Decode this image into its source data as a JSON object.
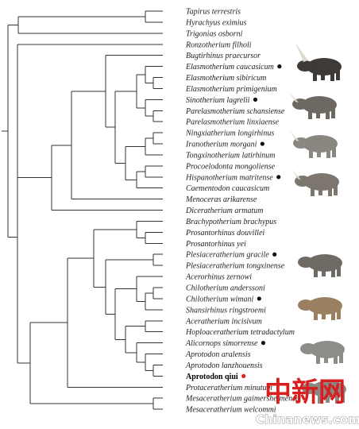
{
  "taxa": [
    {
      "name": "Tapirus terrestris",
      "mark": "none"
    },
    {
      "name": "Hyrachyus eximius",
      "mark": "none"
    },
    {
      "name": "Trigonias osborni",
      "mark": "none"
    },
    {
      "name": "Ronzotherium filholi",
      "mark": "none"
    },
    {
      "name": "Bugtirhinus praecursor",
      "mark": "none"
    },
    {
      "name": "Elasmotherium caucasicum",
      "mark": "dot"
    },
    {
      "name": "Elasmotherium sibiricum",
      "mark": "none"
    },
    {
      "name": "Elasmotherium primigenium",
      "mark": "none"
    },
    {
      "name": "Sinotherium lagrelii",
      "mark": "dot"
    },
    {
      "name": "Parelasmotherium schansiense",
      "mark": "none"
    },
    {
      "name": "Parelasmotherium linxiaense",
      "mark": "none"
    },
    {
      "name": "Ningxiatherium longirhinus",
      "mark": "none"
    },
    {
      "name": "Iranotherium morgani",
      "mark": "dot"
    },
    {
      "name": "Tongxinotherium latirhinum",
      "mark": "none"
    },
    {
      "name": "Procoelodonta mongoliense",
      "mark": "none"
    },
    {
      "name": "Hispanotherium matritense",
      "mark": "dot"
    },
    {
      "name": "Caementodon caucasicum",
      "mark": "none"
    },
    {
      "name": "Menoceras arikarense",
      "mark": "none"
    },
    {
      "name": "Diceratherium armatum",
      "mark": "none"
    },
    {
      "name": "Brachypotherium brachypus",
      "mark": "none"
    },
    {
      "name": "Prosantorhinus douvillei",
      "mark": "none"
    },
    {
      "name": "Prosantorhinus yei",
      "mark": "none"
    },
    {
      "name": "Plesiaceratherium gracile",
      "mark": "dot"
    },
    {
      "name": "Plesiaceratherium tongxinense",
      "mark": "none"
    },
    {
      "name": "Acerorhinus zernowi",
      "mark": "none"
    },
    {
      "name": "Chilotherium anderssoni",
      "mark": "none"
    },
    {
      "name": "Chilotherium wimani",
      "mark": "dot"
    },
    {
      "name": "Shansirhinus ringstroemi",
      "mark": "none"
    },
    {
      "name": "Aceratherium incisivum",
      "mark": "none"
    },
    {
      "name": "Hoploaceratherium tetradactylum",
      "mark": "none"
    },
    {
      "name": "Alicornops simorrense",
      "mark": "dot"
    },
    {
      "name": "Aprotodon aralensis",
      "mark": "none"
    },
    {
      "name": "Aprotodon lanzhouensis",
      "mark": "none"
    },
    {
      "name": "Aprotodon qiui",
      "mark": "reddot",
      "bold": true
    },
    {
      "name": "Protaceratherium minutum",
      "mark": "none"
    },
    {
      "name": "Mesaceratherium gaimersheimense",
      "mark": "none"
    },
    {
      "name": "Mesaceratherium welcommi",
      "mark": "none"
    }
  ],
  "illustrations": [
    {
      "icon": "woolly-elasmotherium-icon",
      "color": "#3d3a37"
    },
    {
      "icon": "sinotherium-icon",
      "color": "#6d6862"
    },
    {
      "icon": "iranotherium-icon",
      "color": "#8a8780"
    },
    {
      "icon": "hispanotherium-icon",
      "color": "#7c766e"
    },
    {
      "icon": "plesiaceratherium-icon",
      "color": "#6f6a64"
    },
    {
      "icon": "chilotherium-icon",
      "color": "#9a8060"
    },
    {
      "icon": "alicornops-icon",
      "color": "#8e8c88"
    },
    {
      "icon": "aprotodon-icon",
      "color": "#8a8884"
    }
  ],
  "watermark": {
    "cn": "中新网",
    "en": "Chinanews.com"
  },
  "colors": {
    "branch": "#333333",
    "dot": "#111111",
    "highlight": "#e0201c"
  }
}
